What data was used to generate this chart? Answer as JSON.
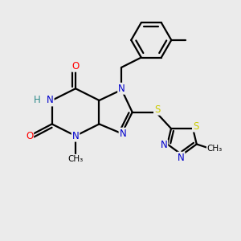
{
  "background_color": "#ebebeb",
  "atom_colors": {
    "N": "#0000cc",
    "O": "#ff0000",
    "S": "#cccc00",
    "C": "#000000",
    "H": "#2e8b8b"
  },
  "bond_color": "#000000",
  "bond_width": 1.6,
  "figsize": [
    3.0,
    3.0
  ],
  "dpi": 100
}
